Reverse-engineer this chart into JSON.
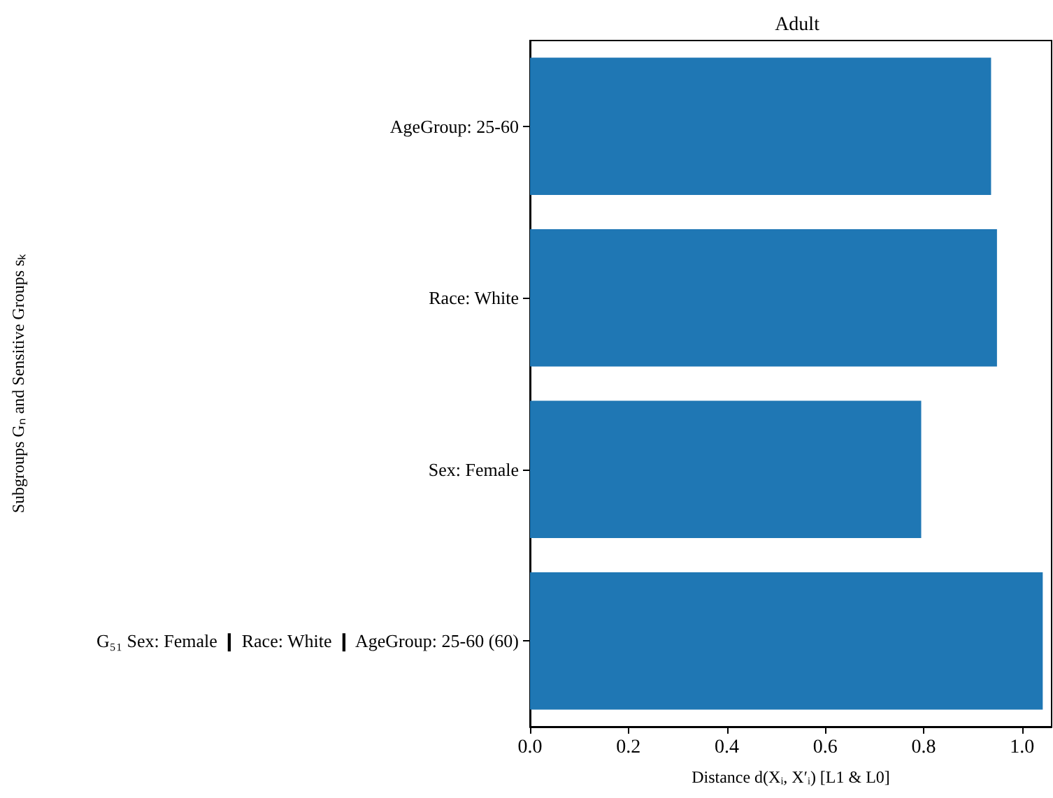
{
  "chart_data": {
    "type": "bar",
    "orientation": "horizontal",
    "title": "Adult",
    "xlabel": "Distance d(Xᵢ, X′ᵢ) [L1 & L0]",
    "ylabel": "Subgroups Gₙ and Sensitive Groups sₖ",
    "categories": [
      "AgeGroup: 25-60",
      "Race: White",
      "Sex: Female",
      "G₅₁ Sex: Female ❙ Race: White ❙ AgeGroup: 25-60 (60)"
    ],
    "values": [
      0.937,
      0.949,
      0.795,
      1.042
    ],
    "color": "#1f77b4",
    "xlim": [
      0,
      1.06
    ],
    "xticks": [
      {
        "value": 0,
        "label": "0.0"
      },
      {
        "value": 0.2,
        "label": "0.2"
      },
      {
        "value": 0.4,
        "label": "0.4"
      },
      {
        "value": 0.6,
        "label": "0.6"
      },
      {
        "value": 0.8,
        "label": "0.8"
      },
      {
        "value": 1,
        "label": "1.0"
      }
    ],
    "grid": false
  }
}
